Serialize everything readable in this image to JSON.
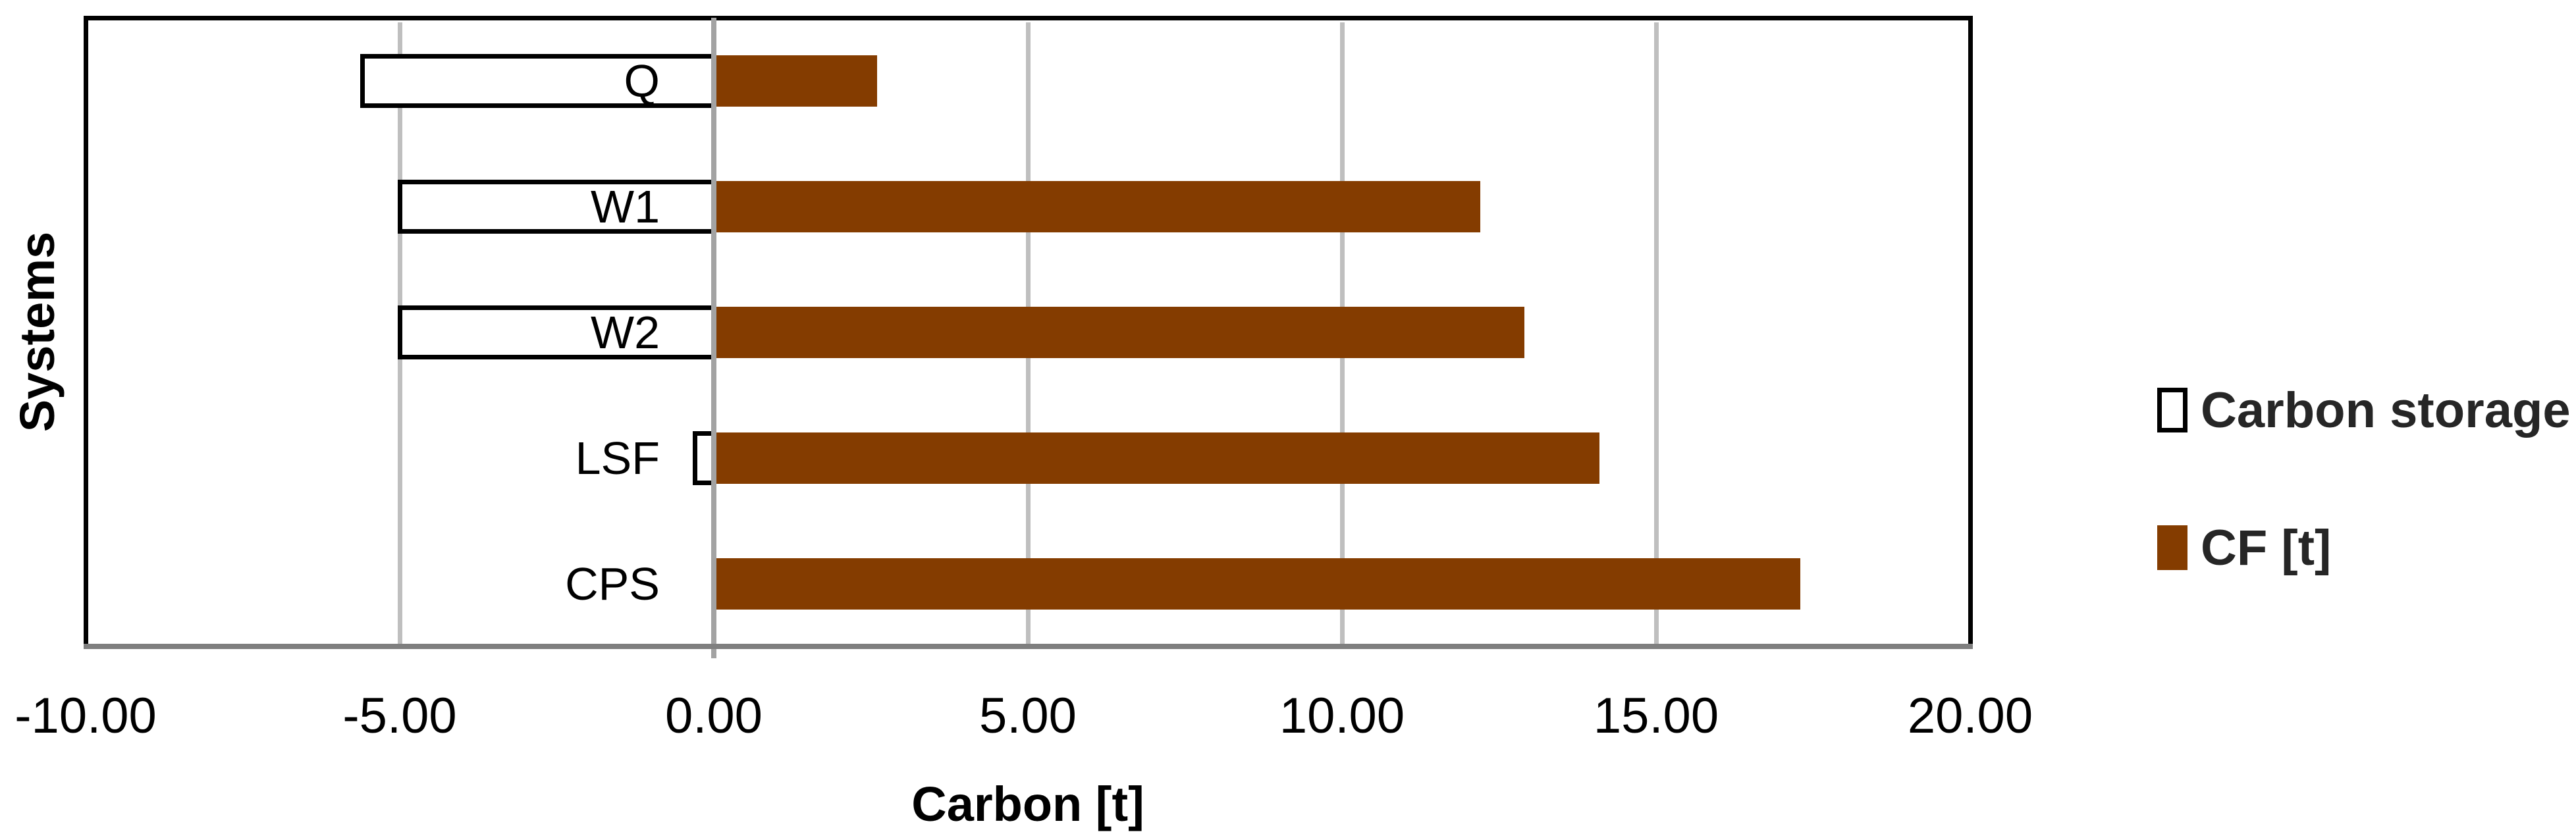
{
  "chart_data": {
    "type": "bar",
    "orientation": "horizontal",
    "title": "",
    "xlabel": "Carbon [t]",
    "ylabel": "Systems",
    "categories": [
      "Q",
      "W1",
      "W2",
      "LSF",
      "CPS"
    ],
    "series": [
      {
        "name": "Carbon storage [t]",
        "values": [
          -5.6,
          -5.0,
          -5.0,
          -0.3,
          0.0
        ]
      },
      {
        "name": "CF [t]",
        "values": [
          2.6,
          12.2,
          12.9,
          14.1,
          17.3
        ]
      }
    ],
    "xlim": [
      -10,
      20
    ],
    "xtick_step": 5,
    "xtick_labels": [
      "-10.00",
      "-5.00",
      "0.00",
      "5.00",
      "10.00",
      "15.00",
      "20.00"
    ],
    "grid": "vertical-major-gridlines",
    "legend_position": "right"
  },
  "legend": {
    "items": [
      {
        "label": "Carbon storage [t]",
        "swatch": "white-outlined-square"
      },
      {
        "label": "CF [t]",
        "swatch": "brown-solid-square"
      }
    ]
  },
  "colors": {
    "cf_bar": "#843C00",
    "storage_bar_fill": "#FFFFFF",
    "storage_bar_border": "#000000",
    "gridline": "#BFBFBF",
    "category_axis_line": "#A3A3A3",
    "value_axis_line": "#7F7F7F",
    "plot_border": "#000000"
  }
}
